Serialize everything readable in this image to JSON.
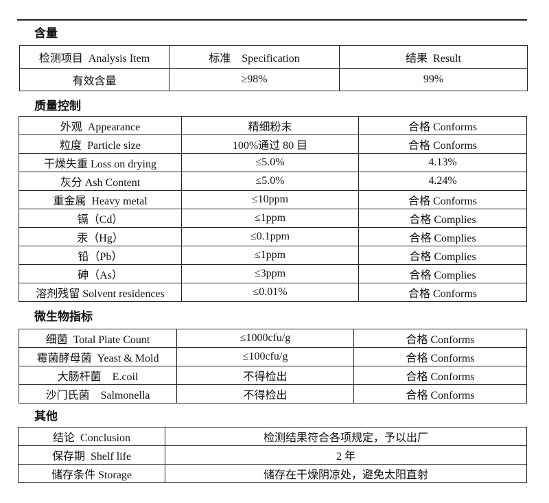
{
  "sections": {
    "content": {
      "title": "含量",
      "header": [
        "检测项目  Analysis Item",
        "标准    Specification",
        "结果  Result"
      ],
      "rows": [
        [
          "有效含量",
          "≥98%",
          "99%"
        ]
      ]
    },
    "quality": {
      "title": "质量控制",
      "rows": [
        [
          "外观  Appearance",
          "精细粉末",
          "合格 Conforms"
        ],
        [
          "粒度  Particle size",
          "100%通过 80 目",
          "合格 Conforms"
        ],
        [
          "干燥失重 Loss on drying",
          "≤5.0%",
          "4.13%"
        ],
        [
          "灰分 Ash Content",
          "≤5.0%",
          "4.24%"
        ],
        [
          "重金属  Heavy metal",
          "≤10ppm",
          "合格 Conforms"
        ],
        [
          "镉（Cd）",
          "≤1ppm",
          "合格 Complies"
        ],
        [
          "汞（Hg）",
          "≤0.1ppm",
          "合格 Complies"
        ],
        [
          "铅（Pb）",
          "≤1ppm",
          "合格 Complies"
        ],
        [
          "砷（As）",
          "≤3ppm",
          "合格 Complies"
        ],
        [
          "溶剂残留 Solvent residences",
          "≤0.01%",
          "合格 Conforms"
        ]
      ]
    },
    "micro": {
      "title": "微生物指标",
      "rows": [
        [
          "细菌  Total Plate Count",
          "≤1000cfu/g",
          "合格 Conforms"
        ],
        [
          "霉菌酵母菌  Yeast & Mold",
          "≤100cfu/g",
          "合格 Conforms"
        ],
        [
          "大肠杆菌    E.coil",
          "不得检出",
          "合格 Conforms"
        ],
        [
          "沙门氏菌    Salmonella",
          "不得检出",
          "合格 Conforms"
        ]
      ]
    },
    "other": {
      "title": "其他",
      "rows": [
        [
          "结论  Conclusion",
          "检测结果符合各项规定，予以出厂"
        ],
        [
          "保存期  Shelf life",
          "2 年"
        ],
        [
          "储存条件 Storage",
          "储存在干燥阴凉处，避免太阳直射"
        ]
      ]
    }
  }
}
